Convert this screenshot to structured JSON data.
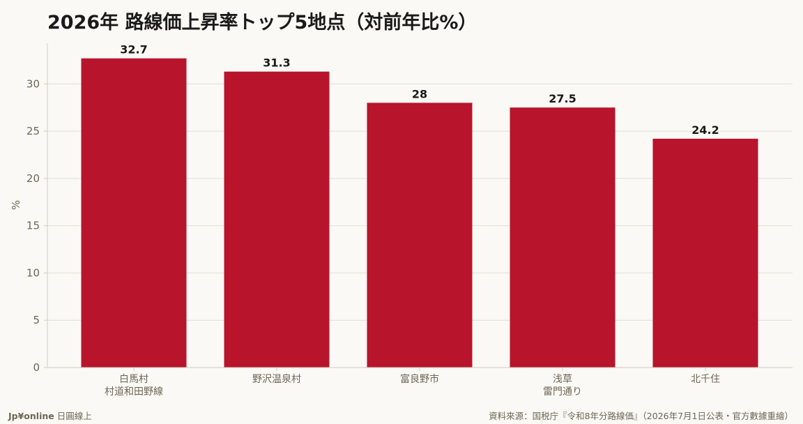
{
  "chart_data": {
    "type": "bar",
    "title": "2026年 路線価上昇率トップ5地点（対前年比%）",
    "xlabel": "",
    "ylabel": "%",
    "ylim": [
      0,
      34.3
    ],
    "yticks": [
      0,
      5,
      10,
      15,
      20,
      25,
      30
    ],
    "grid": true,
    "categories": [
      [
        "白馬村",
        "村道和田野線"
      ],
      [
        "野沢温泉村"
      ],
      [
        "富良野市"
      ],
      [
        "浅草",
        "雷門通り"
      ],
      [
        "北千住"
      ]
    ],
    "values": [
      32.7,
      31.3,
      28,
      27.5,
      24.2
    ],
    "value_labels": [
      "32.7",
      "31.3",
      "28",
      "27.5",
      "24.2"
    ],
    "bar_color": "#b8142c"
  },
  "footer": {
    "brand": "Jp¥online",
    "brand_suffix": "日圓線上",
    "source": "資料來源：国税庁『令和8年分路線価』（2026年7月1日公表・官方數據重繪）"
  }
}
